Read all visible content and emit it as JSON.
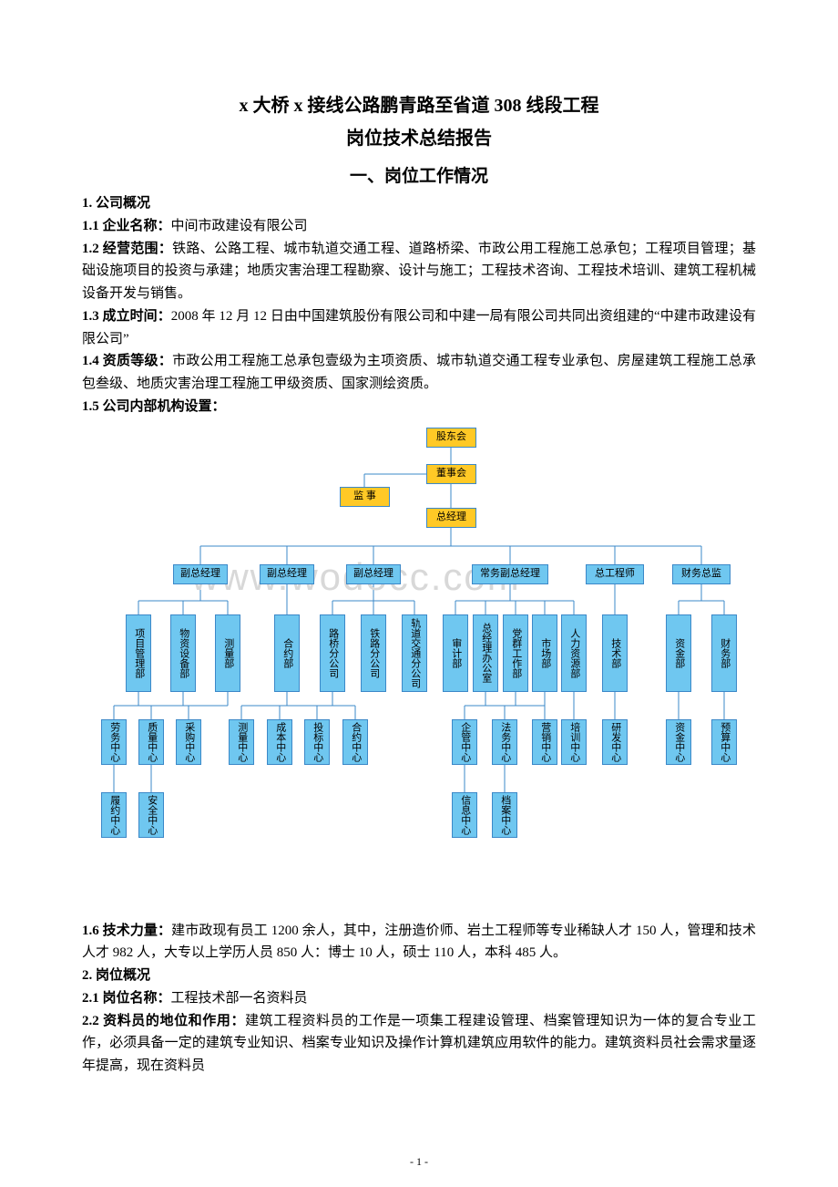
{
  "title1": "x 大桥 x 接线公路鹏青路至省道 308 线段工程",
  "title2": "岗位技术总结报告",
  "section_heading": "一、岗位工作情况",
  "h1": "1. 公司概况",
  "p11_label": "1.1 企业名称：",
  "p11_text": "中间市政建设有限公司",
  "p12_label": "1.2 经营范围：",
  "p12_text": "铁路、公路工程、城市轨道交通工程、道路桥梁、市政公用工程施工总承包；工程项目管理；基础设施项目的投资与承建；地质灾害治理工程勘察、设计与施工；工程技术咨询、工程技术培训、建筑工程机械设备开发与销售。",
  "p13_label": "1.3 成立时间：",
  "p13_text": "2008 年 12 月 12 日由中国建筑股份有限公司和中建一局有限公司共同出资组建的“中建市政建设有限公司”",
  "p14_label": "1.4 资质等级：",
  "p14_text": "市政公用工程施工总承包壹级为主项资质、城市轨道交通工程专业承包、房屋建筑工程施工总承包叁级、地质灾害治理工程施工甲级资质、国家测绘资质。",
  "p15_label": "1.5 公司内部机构设置：",
  "p16_label": "1.6 技术力量：",
  "p16_text": "建市政现有员工 1200 余人，其中，注册造价师、岩土工程师等专业稀缺人才 150 人，管理和技术人才 982 人，大专以上学历人员 850 人：博士 10 人，硕士 110 人，本科 485 人。",
  "h2": "2. 岗位概况",
  "p21_label": "2.1 岗位名称：",
  "p21_text": "工程技术部一名资料员",
  "p22_label": "2.2 资料员的地位和作用：",
  "p22_text": "建筑工程资料员的工作是一项集工程建设管理、档案管理知识为一体的复合专业工作，必须具备一定的建筑专业知识、档案专业知识及操作计算机建筑应用软件的能力。建筑资料员社会需求量逐年提高，现在资料员",
  "watermark": "www.wodocc.com",
  "page_num": "- 1 -",
  "chart": {
    "colors": {
      "yellow": "#ffc926",
      "blue": "#6fc7f0",
      "border": "#3b88c8",
      "line": "#3b88c8"
    },
    "top": {
      "n1": "股东会",
      "n2": "董事会",
      "n3": "总经理",
      "n4": "监 事"
    },
    "row2": [
      "副总经理",
      "副总经理",
      "副总经理",
      "常务副总经理",
      "总工程师",
      "财务总监"
    ],
    "row3": [
      "项目管理部",
      "物资设备部",
      "测量部",
      "合约部",
      "路桥分公司",
      "铁路分公司",
      "轨道交通分公司",
      "审计部",
      "总经理办公室",
      "党群工作部",
      "市场部",
      "人力资源部",
      "技术部",
      "资金部",
      "财务部"
    ],
    "row4_g1": [
      "劳务中心",
      "质量中心",
      "采购中心"
    ],
    "row4_g2": [
      "测量中心",
      "成本中心",
      "投标中心",
      "合约中心"
    ],
    "row4_g3": [
      "企管中心",
      "法务中心",
      "营销中心"
    ],
    "row4_g4": [
      "培训中心"
    ],
    "row4_g5": [
      "研发中心"
    ],
    "row4_g6": [
      "资金中心",
      "预算中心"
    ],
    "row5_g1": [
      "履约中心",
      "安全中心"
    ],
    "row5_g3": [
      "信息中心",
      "档案中心"
    ]
  }
}
